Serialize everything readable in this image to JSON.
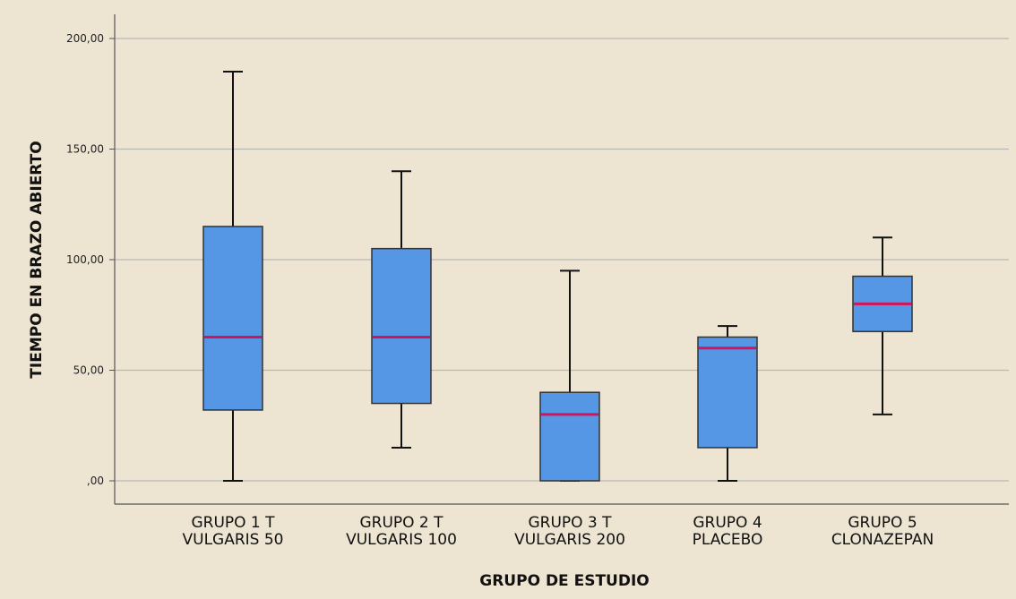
{
  "colors": {
    "background": "#ede5d2",
    "grid": "#b8b8b8",
    "axis": "#555555",
    "box_fill": "#5596e5",
    "box_stroke": "#333333",
    "median": "#d4145a",
    "whisker": "#111111"
  },
  "chart_data": {
    "type": "box",
    "title": "",
    "xlabel": "GRUPO DE ESTUDIO",
    "ylabel": "TIEMPO EN BRAZO ABIERTO",
    "ylim": [
      -10,
      212
    ],
    "yticks": [
      0,
      50,
      100,
      150,
      200
    ],
    "ytick_labels": [
      ",00",
      "50,00",
      "100,00",
      "150,00",
      "200,00"
    ],
    "grid": true,
    "categories": [
      [
        "GRUPO 1 T",
        "VULGARIS 50"
      ],
      [
        "GRUPO 2 T",
        "VULGARIS 100"
      ],
      [
        "GRUPO 3 T",
        "VULGARIS 200"
      ],
      [
        "GRUPO 4",
        "PLACEBO"
      ],
      [
        "GRUPO 5",
        "CLONAZEPAN"
      ]
    ],
    "boxes": [
      {
        "min": 0,
        "q1": 32,
        "median": 65,
        "q3": 115,
        "max": 185
      },
      {
        "min": 15,
        "q1": 35,
        "median": 65,
        "q3": 105,
        "max": 140
      },
      {
        "min": 0,
        "q1": 0,
        "median": 30,
        "q3": 40,
        "max": 95
      },
      {
        "min": 0,
        "q1": 15,
        "median": 60,
        "q3": 65,
        "max": 70
      },
      {
        "min": 30,
        "q1": 67.5,
        "median": 80,
        "q3": 92.5,
        "max": 110
      }
    ]
  }
}
